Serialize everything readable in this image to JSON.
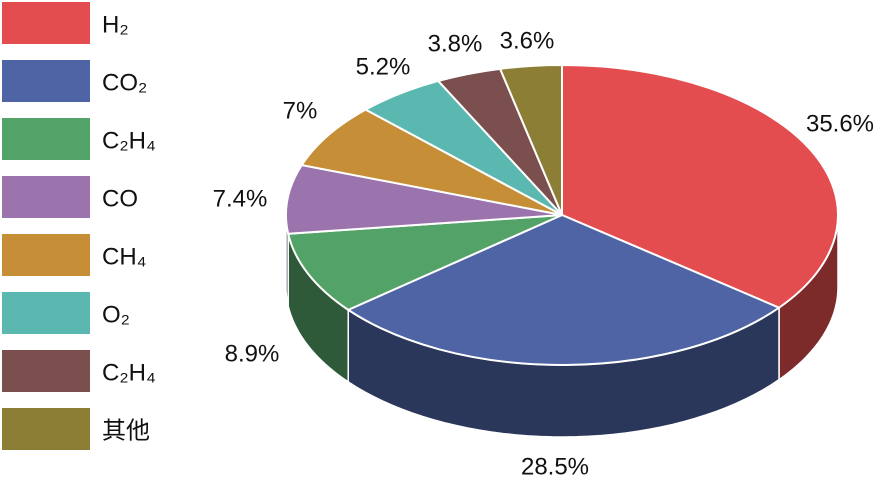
{
  "chart_data": {
    "type": "pie3d",
    "categories": [
      "H₂",
      "CO₂",
      "C₂H₄",
      "CO",
      "CH₄",
      "O₂",
      "C₂H₄",
      "其他"
    ],
    "values": [
      35.6,
      28.5,
      8.9,
      7.4,
      7,
      5.2,
      3.8,
      3.6
    ],
    "value_labels": [
      "35.6%",
      "28.5%",
      "8.9%",
      "7.4%",
      "7%",
      "5.2%",
      "3.8%",
      "3.6%"
    ],
    "colors": [
      "#e34d4f",
      "#4f64a4",
      "#53a368",
      "#9b74ae",
      "#c58e37",
      "#5bb8b0",
      "#7a4f4d",
      "#8c7e35"
    ],
    "legend": "left"
  }
}
